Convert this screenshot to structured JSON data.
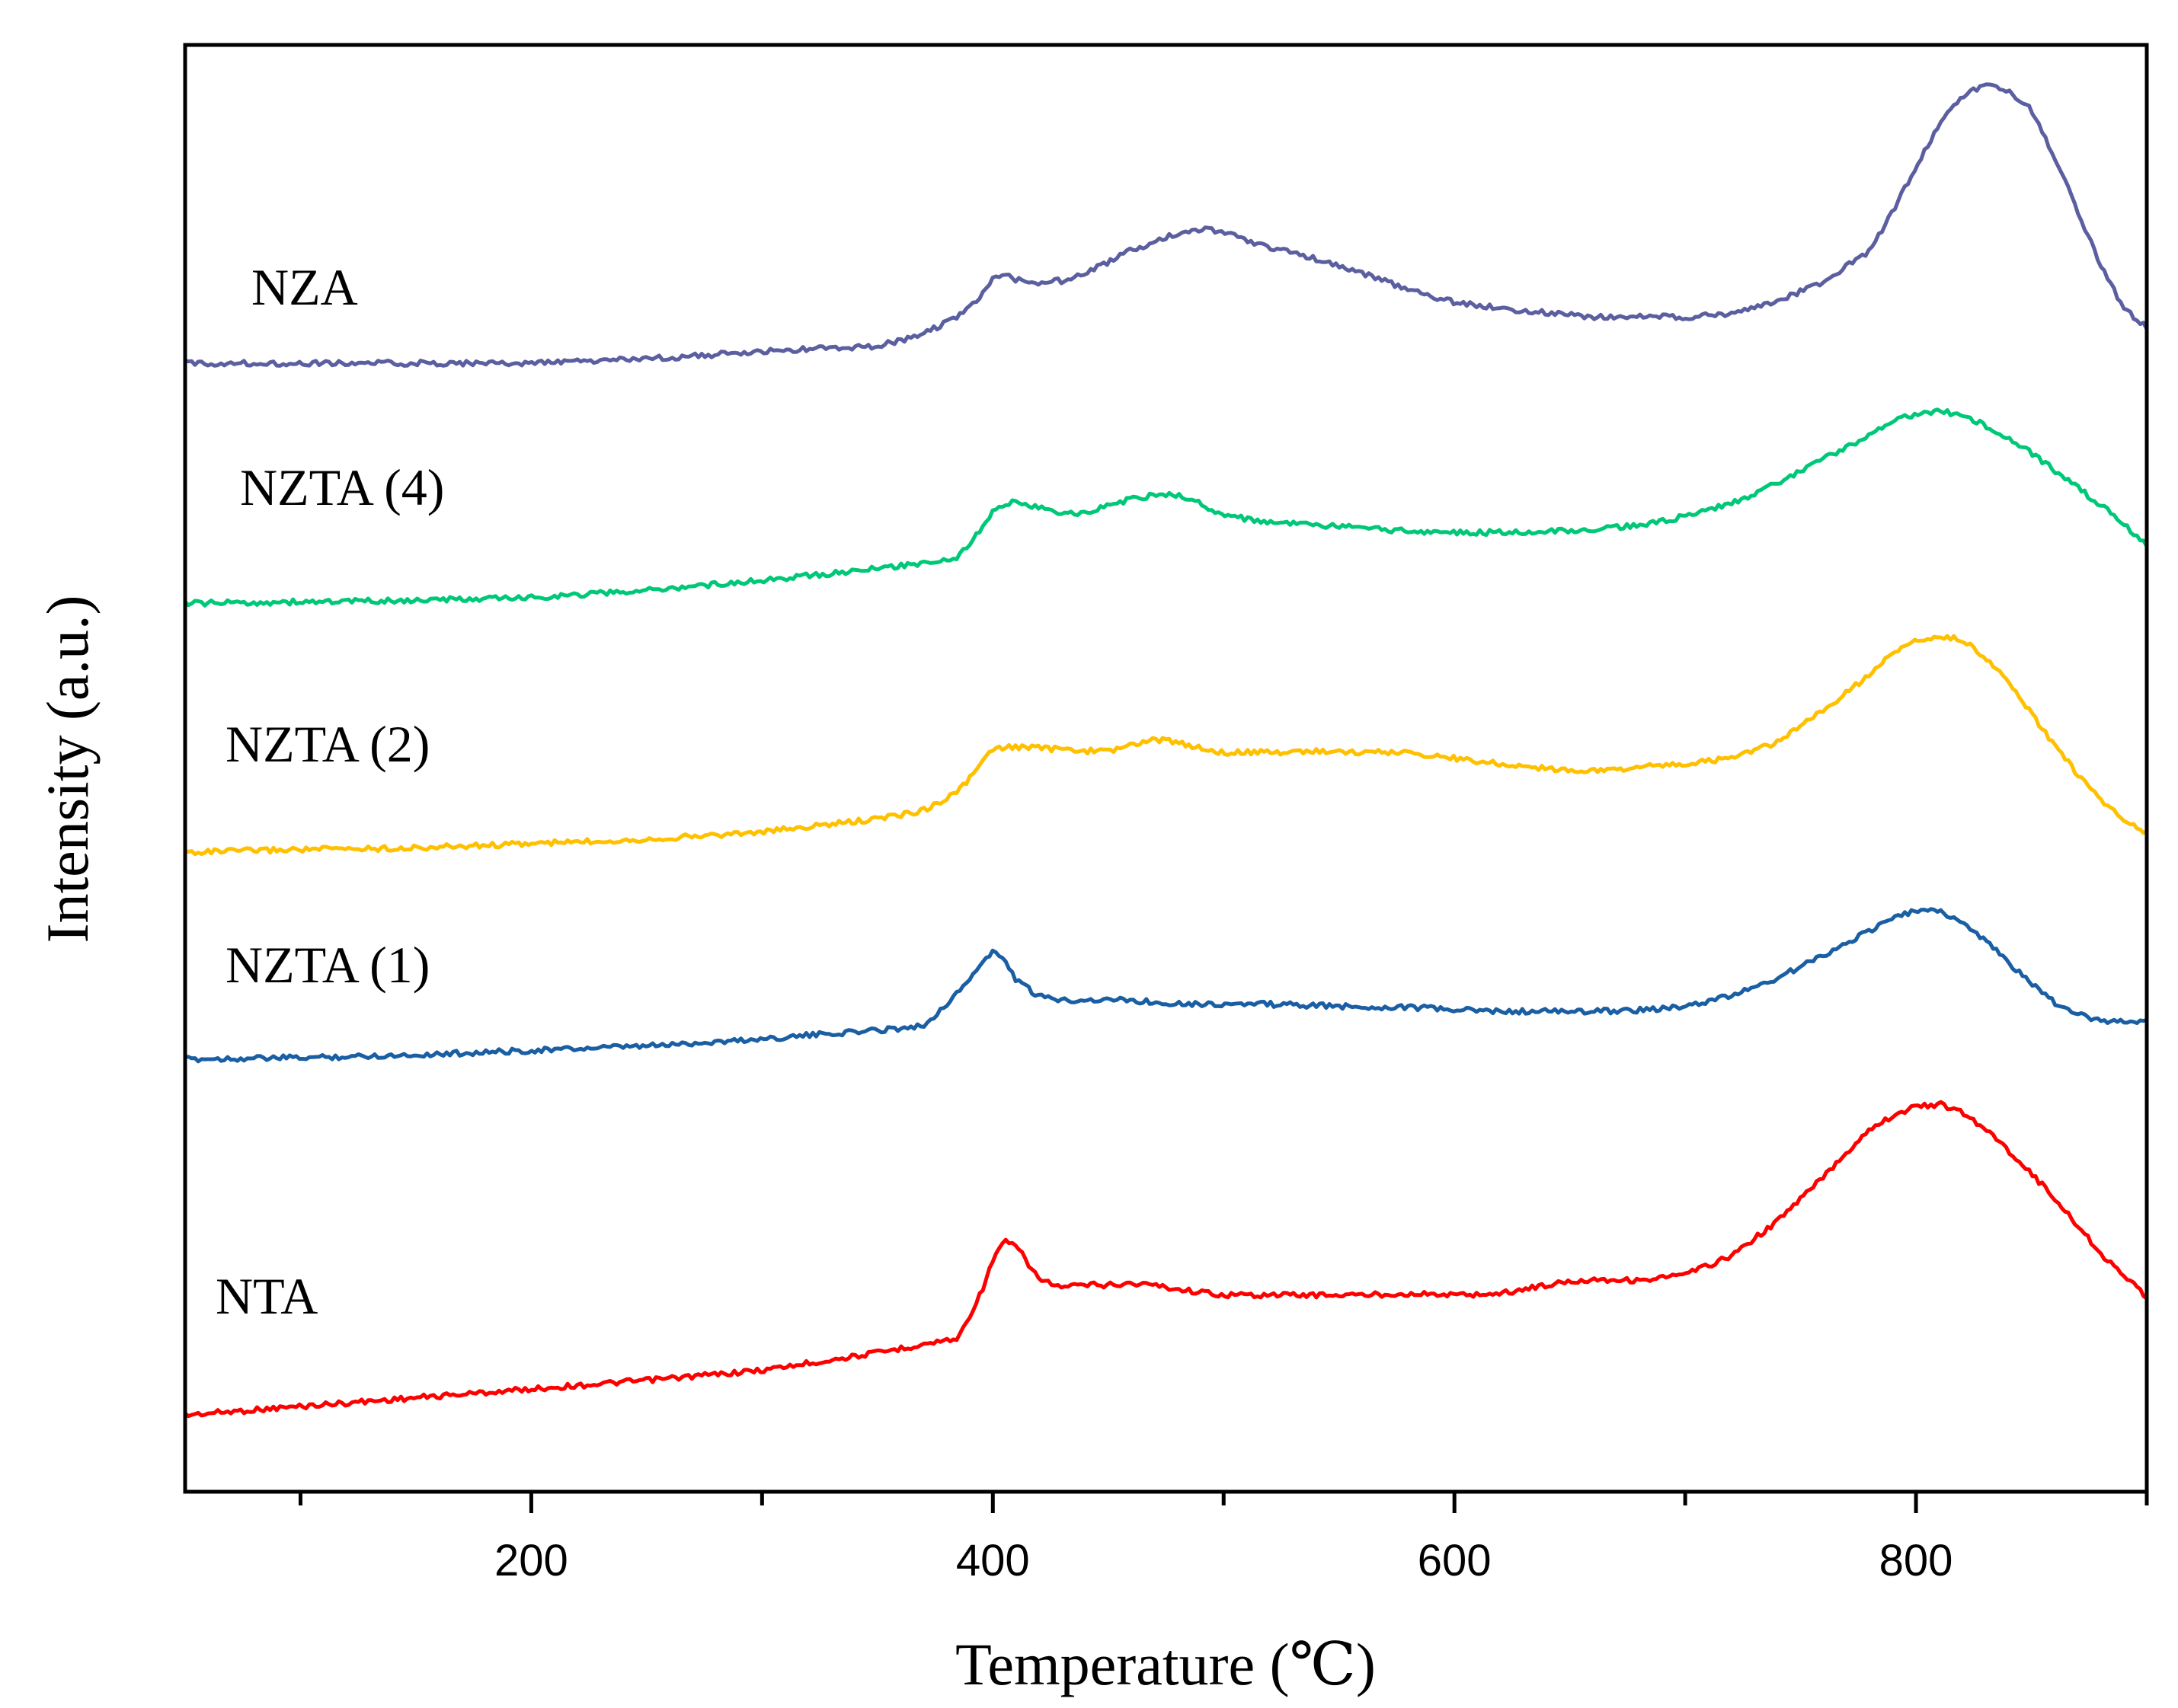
{
  "chart_data": {
    "type": "line",
    "title": "",
    "xlabel": "Temperature (℃)",
    "ylabel": "Intensity (a.u.)",
    "xlim": [
      50,
      900
    ],
    "ylim": [
      0,
      100
    ],
    "x_ticks": [
      200,
      400,
      600,
      800
    ],
    "x_tick_labels": [
      "200",
      "400",
      "600",
      "800"
    ],
    "x_minor_ticks": [
      100,
      300,
      500,
      700,
      900
    ],
    "y_ticks_shown": false,
    "grid": false,
    "legend": "inline labels left of curves",
    "x": [
      50,
      100,
      150,
      200,
      250,
      300,
      350,
      370,
      385,
      395,
      400,
      405,
      410,
      420,
      430,
      440,
      450,
      460,
      470,
      480,
      490,
      500,
      520,
      540,
      560,
      580,
      600,
      620,
      640,
      660,
      680,
      700,
      720,
      740,
      760,
      780,
      790,
      800,
      810,
      820,
      830,
      840,
      850,
      860,
      870,
      880,
      890,
      900
    ],
    "series": [
      {
        "name": "NTA",
        "color": "#ff0000",
        "values": [
          5.3,
          5.9,
          6.5,
          7.1,
          7.7,
          8.4,
          9.6,
          10.2,
          10.6,
          13.8,
          16.0,
          17.3,
          17.0,
          14.7,
          14.1,
          14.3,
          14.3,
          14.4,
          14.3,
          14.0,
          13.8,
          13.6,
          13.6,
          13.6,
          13.6,
          13.7,
          13.6,
          13.7,
          14.3,
          14.7,
          14.6,
          15.0,
          16.3,
          18.7,
          21.8,
          25.1,
          26.0,
          26.6,
          26.8,
          26.2,
          25.1,
          23.6,
          22.0,
          20.3,
          18.4,
          16.5,
          14.9,
          13.5
        ]
      },
      {
        "name": "NZTA (1)",
        "color": "#1a5fa3",
        "values": [
          29.9,
          30.0,
          30.2,
          30.5,
          30.8,
          31.3,
          31.9,
          32.2,
          34.5,
          36.5,
          37.3,
          36.8,
          35.4,
          34.2,
          34.0,
          34.0,
          34.0,
          34.0,
          33.8,
          33.8,
          33.7,
          33.7,
          33.7,
          33.6,
          33.5,
          33.5,
          33.3,
          33.2,
          33.2,
          33.2,
          33.3,
          33.5,
          34.3,
          35.5,
          37.1,
          38.8,
          39.6,
          40.2,
          40.1,
          39.4,
          38.1,
          36.6,
          35.1,
          33.8,
          33.0,
          32.6,
          32.5,
          32.5
        ]
      },
      {
        "name": "NZTA (2)",
        "color": "#ffc000",
        "values": [
          44.2,
          44.4,
          44.5,
          44.8,
          45.1,
          45.6,
          46.5,
          47.1,
          48.4,
          50.3,
          51.3,
          51.4,
          51.5,
          51.4,
          51.3,
          51.2,
          51.2,
          51.6,
          52.0,
          51.8,
          51.4,
          51.1,
          51.1,
          51.2,
          51.1,
          51.1,
          50.7,
          50.3,
          50.0,
          49.8,
          50.1,
          50.3,
          50.7,
          51.8,
          54.0,
          56.5,
          58.0,
          58.8,
          59.1,
          58.9,
          57.7,
          55.9,
          53.8,
          51.6,
          49.6,
          47.9,
          46.4,
          45.5
        ]
      },
      {
        "name": "NZTA (4)",
        "color": "#00c878",
        "values": [
          61.4,
          61.5,
          61.6,
          61.8,
          62.3,
          63.0,
          63.8,
          64.2,
          64.6,
          66.5,
          67.7,
          68.2,
          68.5,
          68.0,
          67.6,
          67.6,
          68.2,
          68.6,
          68.9,
          68.9,
          68.3,
          67.5,
          67.0,
          66.8,
          66.6,
          66.4,
          66.3,
          66.3,
          66.4,
          66.5,
          66.8,
          67.4,
          68.3,
          69.7,
          71.4,
          73.0,
          74.0,
          74.5,
          74.7,
          74.4,
          73.7,
          72.8,
          71.8,
          70.6,
          69.4,
          68.2,
          66.9,
          65.5
        ]
      },
      {
        "name": "NZA",
        "color": "#5b5fa0",
        "values": [
          78.0,
          78.0,
          78.0,
          78.0,
          78.3,
          78.8,
          79.2,
          80.0,
          81.3,
          82.6,
          84.0,
          84.2,
          83.8,
          83.6,
          83.7,
          84.2,
          85.0,
          85.8,
          86.4,
          87.0,
          87.3,
          87.0,
          86.0,
          85.2,
          84.2,
          83.1,
          82.2,
          81.8,
          81.5,
          81.2,
          81.2,
          81.2,
          81.4,
          82.3,
          83.6,
          85.8,
          88.5,
          91.6,
          94.5,
          96.4,
          97.3,
          96.9,
          95.5,
          92.3,
          88.5,
          84.8,
          81.8,
          80.5
        ]
      }
    ],
    "labels": [
      "NZA",
      "NZTA (4)",
      "NZTA (2)",
      "NZTA (1)",
      "NTA"
    ]
  }
}
